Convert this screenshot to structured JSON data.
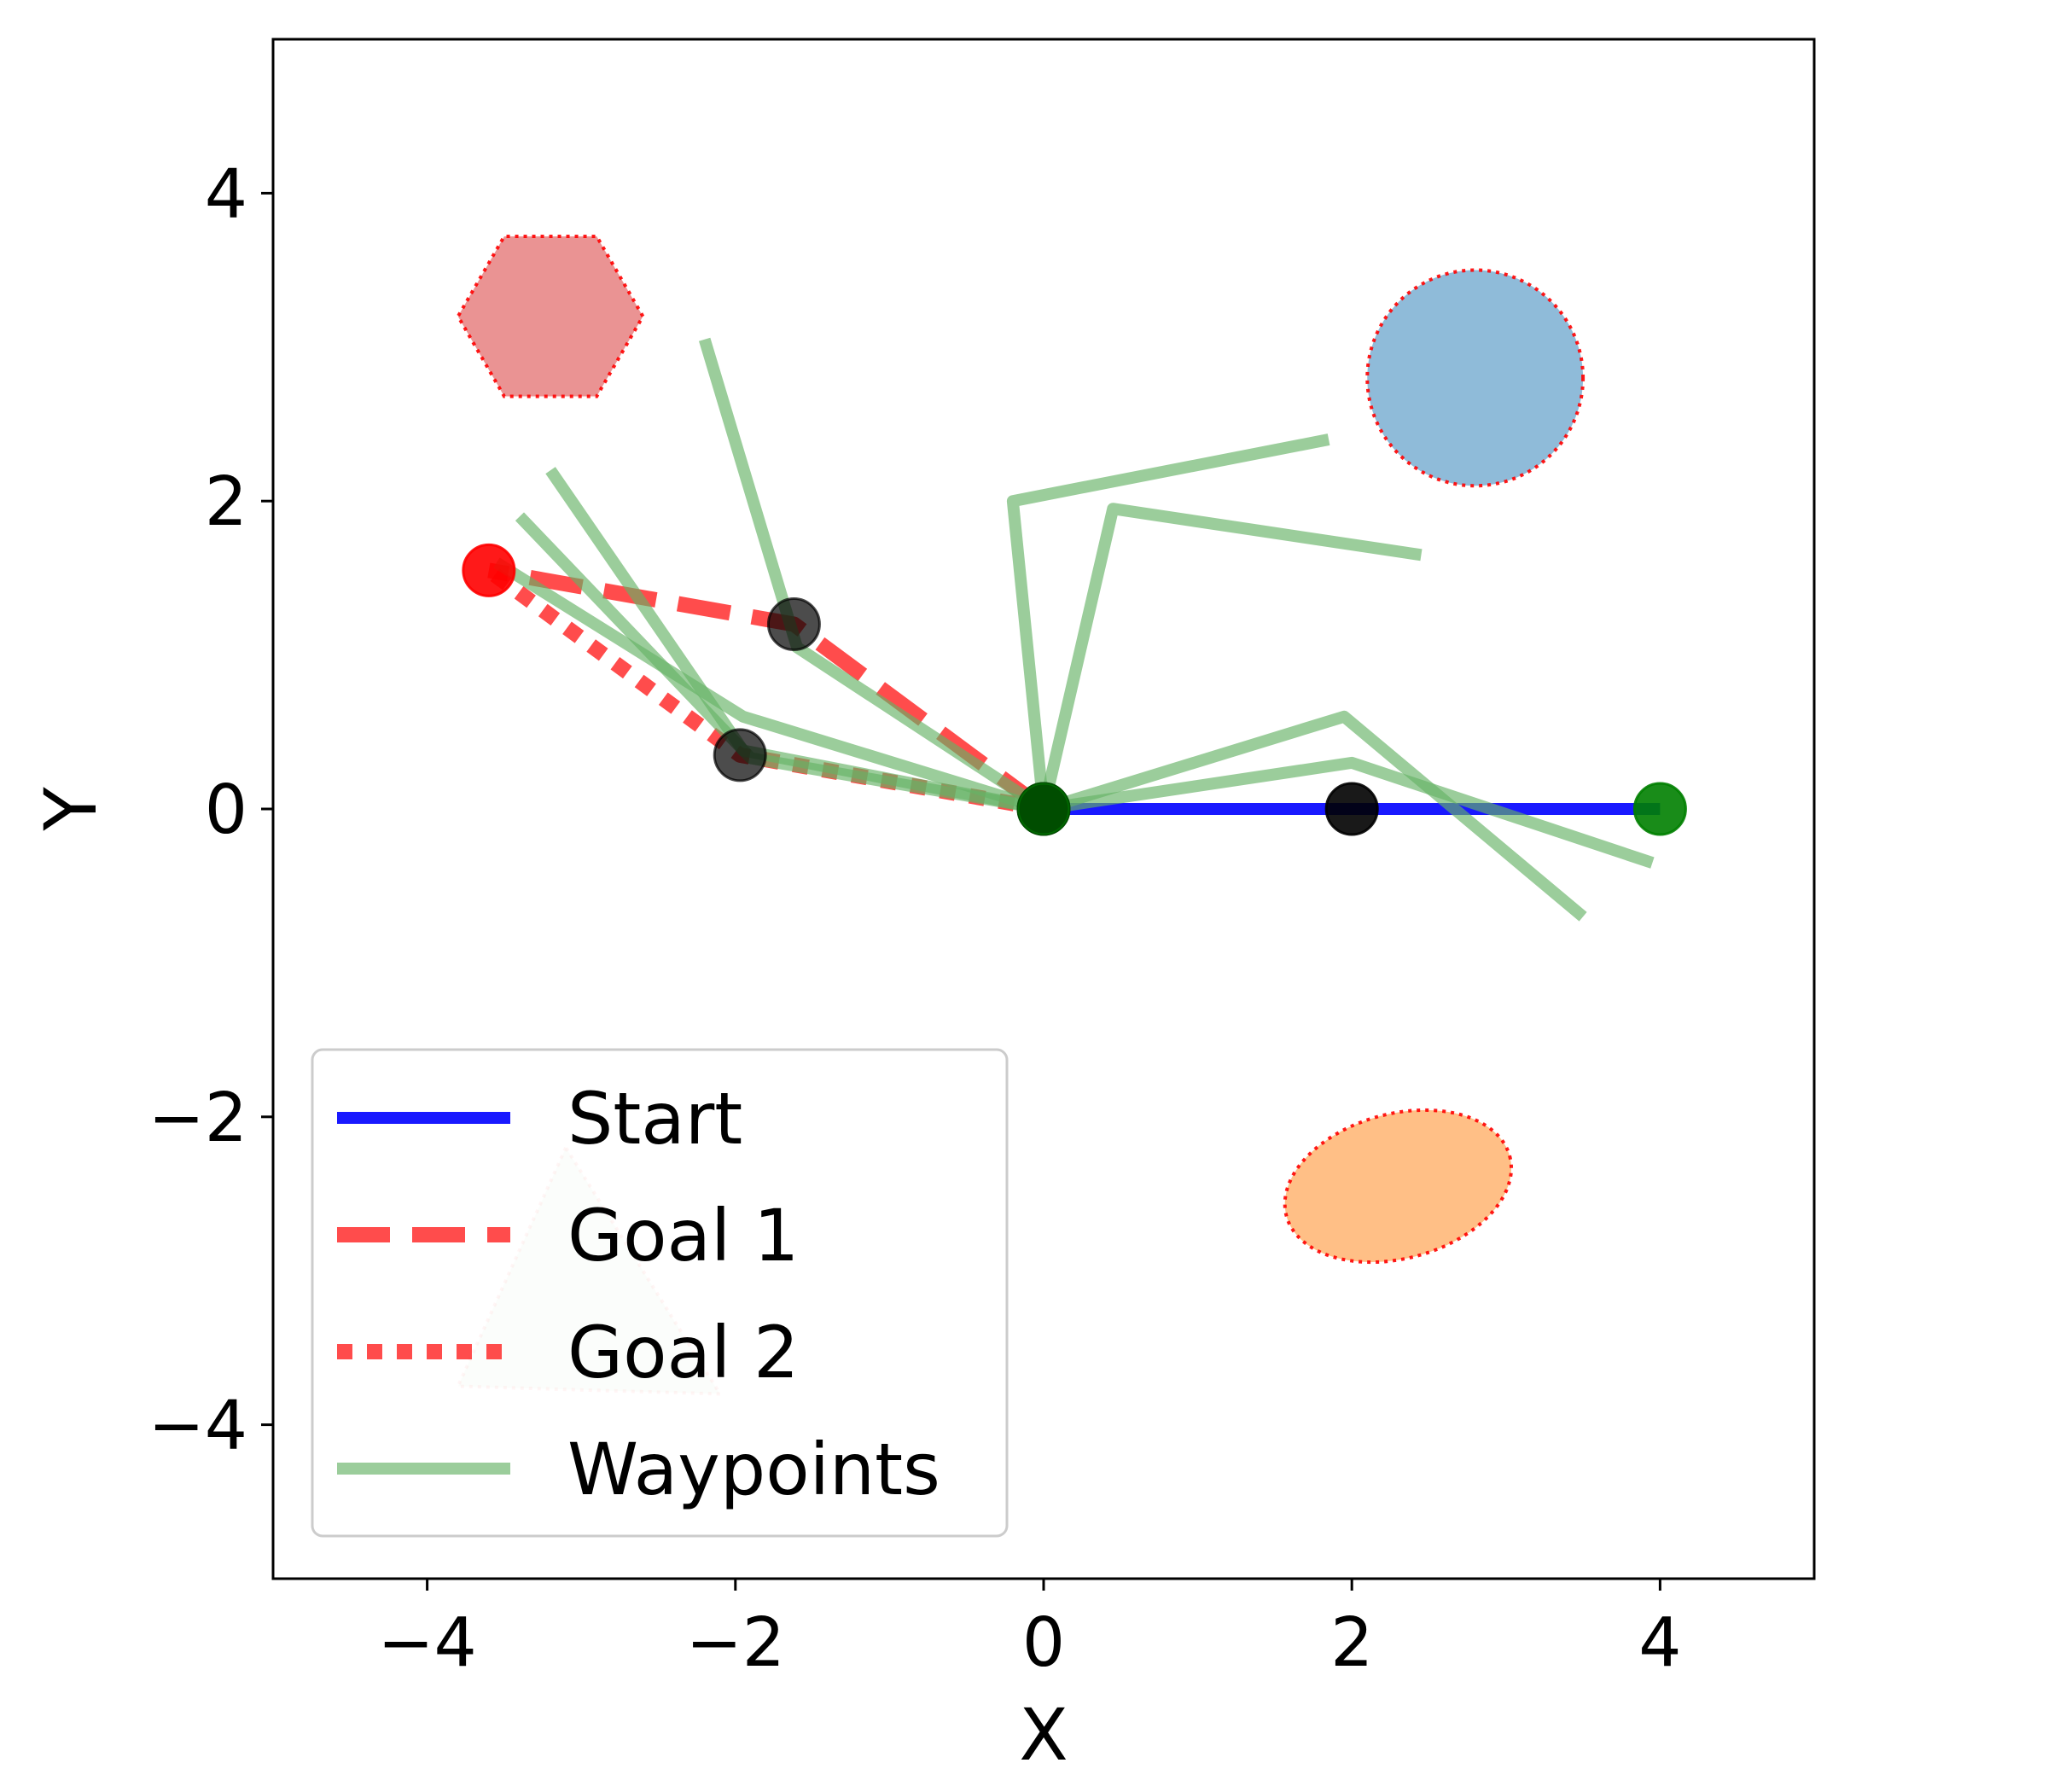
{
  "chart_data": {
    "type": "line",
    "title": "",
    "xlabel": "X",
    "ylabel": "Y",
    "xlim": [
      -5,
      5
    ],
    "ylim": [
      -5,
      5
    ],
    "xticks": [
      -4,
      -2,
      0,
      2,
      4
    ],
    "yticks": [
      -4,
      -2,
      0,
      2,
      4
    ],
    "xtick_labels": [
      "−4",
      "−2",
      "0",
      "2",
      "4"
    ],
    "ytick_labels": [
      "−4",
      "−2",
      "0",
      "2",
      "4"
    ],
    "grid": false,
    "legend_position": "lower-left",
    "series": [
      {
        "name": "Start",
        "style": "solid",
        "color": "#0000ff",
        "points": [
          [
            0,
            0
          ],
          [
            4,
            0
          ]
        ]
      },
      {
        "name": "Goal 1",
        "style": "dashed",
        "color": "#ff0000",
        "points": [
          [
            0,
            0
          ],
          [
            -1.62,
            1.2
          ],
          [
            -3.6,
            1.55
          ]
        ]
      },
      {
        "name": "Goal 2",
        "style": "dotted",
        "color": "#ff0000",
        "points": [
          [
            0,
            0
          ],
          [
            -1.97,
            0.35
          ],
          [
            -3.6,
            1.55
          ]
        ]
      },
      {
        "name": "Waypoints",
        "style": "solid",
        "color": "#66b266",
        "paths": [
          [
            [
              0,
              0
            ],
            [
              -1.9,
              0.33
            ],
            [
              -3.4,
              1.9
            ]
          ],
          [
            [
              0,
              0
            ],
            [
              -1.95,
              0.38
            ],
            [
              -3.2,
              2.2
            ]
          ],
          [
            [
              0,
              0
            ],
            [
              -1.6,
              1.05
            ],
            [
              -2.2,
              3.05
            ]
          ],
          [
            [
              0,
              0
            ],
            [
              -1.95,
              0.6
            ],
            [
              -3.55,
              1.6
            ]
          ],
          [
            [
              0,
              0
            ],
            [
              -0.2,
              2.0
            ],
            [
              1.85,
              2.4
            ]
          ],
          [
            [
              0,
              0
            ],
            [
              0.45,
              1.95
            ],
            [
              2.45,
              1.65
            ]
          ],
          [
            [
              0,
              0
            ],
            [
              1.95,
              0.6
            ],
            [
              3.5,
              -0.7
            ]
          ],
          [
            [
              0,
              0
            ],
            [
              2.0,
              0.3
            ],
            [
              3.95,
              -0.35
            ]
          ]
        ]
      }
    ],
    "markers": [
      {
        "x": -3.6,
        "y": 1.55,
        "color": "#ff0000",
        "alpha": 0.9
      },
      {
        "x": -1.62,
        "y": 1.2,
        "color": "#000000",
        "alpha": 0.7
      },
      {
        "x": -1.97,
        "y": 0.35,
        "color": "#000000",
        "alpha": 0.7
      },
      {
        "x": 0,
        "y": 0,
        "color": "#000000",
        "alpha": 1.0
      },
      {
        "x": 2,
        "y": 0,
        "color": "#000000",
        "alpha": 0.9
      },
      {
        "x": 4,
        "y": 0,
        "color": "#008000",
        "alpha": 0.9
      },
      {
        "x": 0,
        "y": 0,
        "color": "#008000",
        "alpha": 0.6
      }
    ],
    "obstacles": [
      {
        "shape": "hexagon",
        "cx": -3.2,
        "cy": 3.2,
        "r": 0.6,
        "fill": "#d62728",
        "alpha": 0.5
      },
      {
        "shape": "circle",
        "cx": 2.8,
        "cy": 2.8,
        "r": 0.7,
        "fill": "#1f77b4",
        "alpha": 0.5
      },
      {
        "shape": "ellipse",
        "cx": 2.3,
        "cy": -2.45,
        "rx": 0.75,
        "ry": 0.47,
        "rotate_deg": 15,
        "fill": "#ff7f0e",
        "alpha": 0.5
      },
      {
        "shape": "triangle",
        "points": [
          [
            -3.1,
            -2.2
          ],
          [
            -3.8,
            -3.75
          ],
          [
            -2.1,
            -3.8
          ]
        ],
        "fill": "#2ca02c",
        "alpha": 0.1
      }
    ]
  }
}
